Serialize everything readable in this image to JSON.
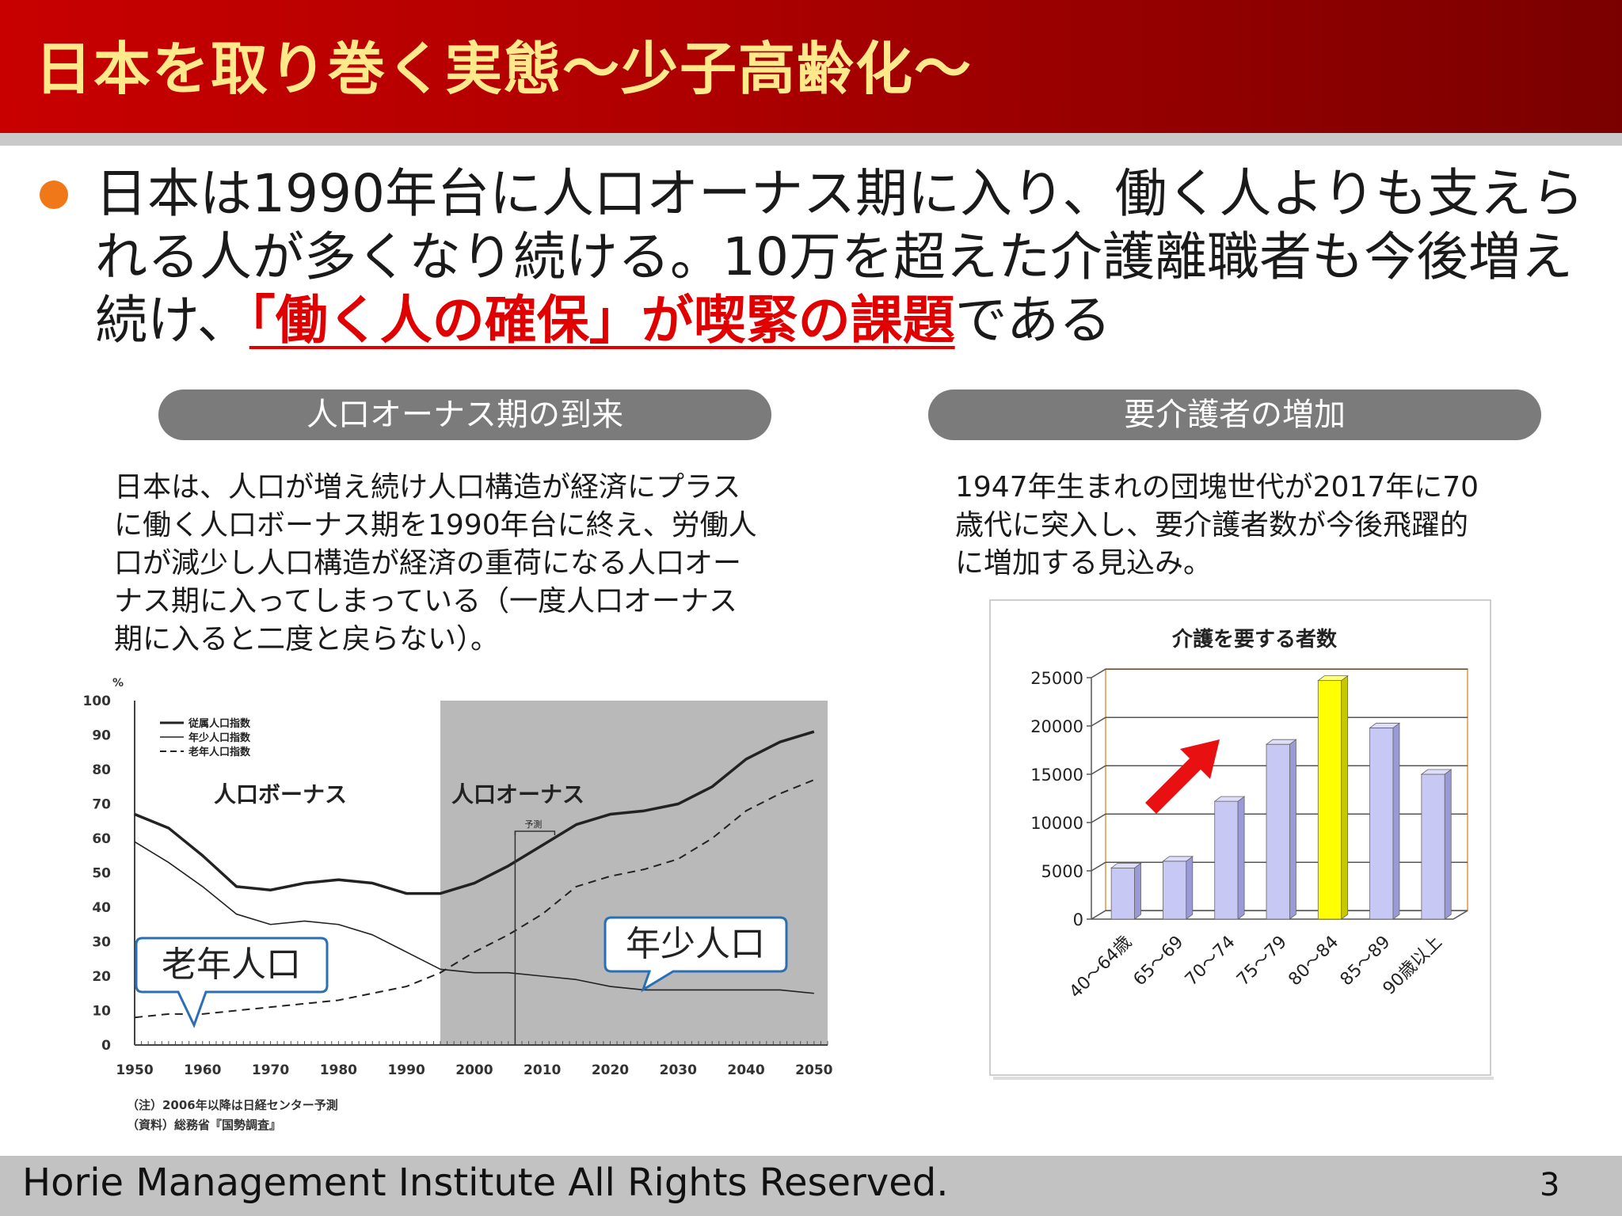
{
  "header": {
    "title": "日本を取り巻く実態～少子高齢化～"
  },
  "lead": {
    "part1": "日本は1990年台に人口オーナス期に入り、働く人よりも支えられる人が多くなり続ける。10万を超えた介護離職者も今後増え続け、",
    "highlight": "「働く人の確保」が喫緊の課題",
    "part2": "である"
  },
  "left": {
    "pill": "人口オーナス期の到来",
    "lines": [
      "日本は、人口が増え続け人口構造が経済にプラス",
      "に働く人口ボーナス期を1990年台に終え、労働人",
      "口が減少し人口構造が経済の重荷になる人口オー",
      "ナス期に入ってしまっている（一度人口オーナス",
      "期に入ると二度と戻らない）。"
    ],
    "note1": "（注）2006年以降は日経センター予測",
    "note2": "（資料）総務省『国勢調査』"
  },
  "right": {
    "pill": "要介護者の増加",
    "lines": [
      "1947年生まれの団塊世代が2017年に70",
      "歳代に突入し、要介護者数が今後飛躍的",
      "に増加する見込み。"
    ]
  },
  "footer": {
    "text": "Horie Management Institute All Rights Reserved.",
    "page": "3"
  },
  "chart_data": [
    {
      "type": "line",
      "ylabel": "%",
      "ylim": [
        0,
        100
      ],
      "yticks": [
        "0",
        "10",
        "20",
        "30",
        "40",
        "50",
        "60",
        "70",
        "80",
        "90",
        "100"
      ],
      "xticks": [
        "1950",
        "1960",
        "1970",
        "1980",
        "1990",
        "2000",
        "2010",
        "2020",
        "2030",
        "2040",
        "2050"
      ],
      "x": [
        1950,
        1955,
        1960,
        1965,
        1970,
        1975,
        1980,
        1985,
        1990,
        1995,
        2000,
        2005,
        2010,
        2015,
        2020,
        2025,
        2030,
        2035,
        2040,
        2045,
        2050
      ],
      "legend": [
        "従属人口指数",
        "年少人口指数",
        "老年人口指数"
      ],
      "series": [
        {
          "name": "従属人口指数",
          "style": "thick",
          "values": [
            67,
            63,
            55,
            46,
            45,
            47,
            48,
            47,
            44,
            44,
            47,
            52,
            58,
            64,
            67,
            68,
            70,
            75,
            83,
            88,
            91
          ]
        },
        {
          "name": "年少人口指数",
          "style": "thin",
          "values": [
            59,
            53,
            46,
            38,
            35,
            36,
            35,
            32,
            27,
            22,
            21,
            21,
            20,
            19,
            17,
            16,
            16,
            16,
            16,
            16,
            15
          ]
        },
        {
          "name": "老年人口指数",
          "style": "dashed",
          "values": [
            8,
            9,
            9,
            10,
            11,
            12,
            13,
            15,
            17,
            21,
            27,
            32,
            38,
            46,
            49,
            51,
            54,
            60,
            68,
            73,
            77
          ]
        }
      ],
      "regions": [
        "人口ボーナス",
        "人口オーナス"
      ],
      "onus_start": 1995,
      "forecast_x": 2006,
      "forecast_label": "予測",
      "callouts": [
        "老年人口",
        "年少人口"
      ],
      "colors": {
        "onus_bg": "#b9b9b9"
      }
    },
    {
      "type": "bar",
      "title": "介護を要する者数",
      "categories": [
        "40～64歳",
        "65～69",
        "70～74",
        "75～79",
        "80～84",
        "85～89",
        "90歳以上"
      ],
      "values": [
        5300,
        6000,
        12200,
        18100,
        24700,
        19800,
        15000
      ],
      "ylim": [
        0,
        25000
      ],
      "yticks": [
        "0",
        "5000",
        "10000",
        "15000",
        "20000",
        "25000"
      ],
      "highlight_index": 4,
      "colors": {
        "bar": "#c8c8f4",
        "highlight": "#ffff00",
        "arrow": "#e81010",
        "grid_frame": "#e6b070"
      }
    }
  ]
}
